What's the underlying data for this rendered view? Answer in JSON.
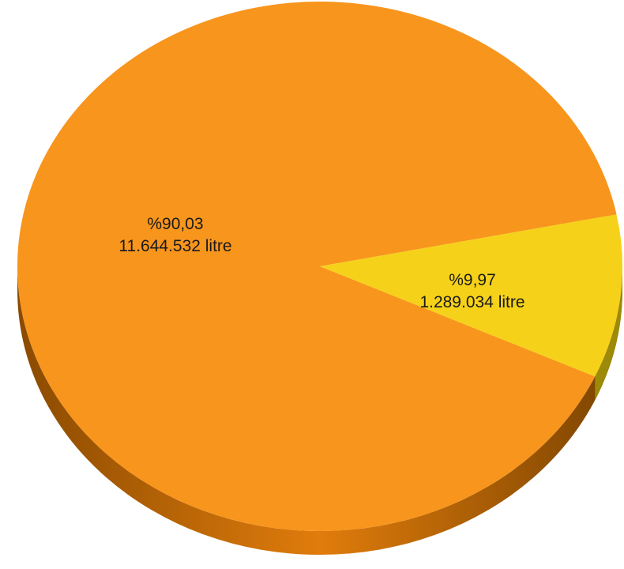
{
  "chart_data": {
    "type": "pie",
    "style": "3d",
    "slices": [
      {
        "percent": 90.03,
        "value": 11644532,
        "percent_label": "%90,03",
        "value_label": "11.644.532 litre",
        "color": "#F8951D",
        "side_color": "#C66A08"
      },
      {
        "percent": 9.97,
        "value": 1289034,
        "percent_label": "%9,97",
        "value_label": "1.289.034 litre",
        "color": "#F6D11A",
        "side_color": "#9C8A08"
      }
    ]
  }
}
